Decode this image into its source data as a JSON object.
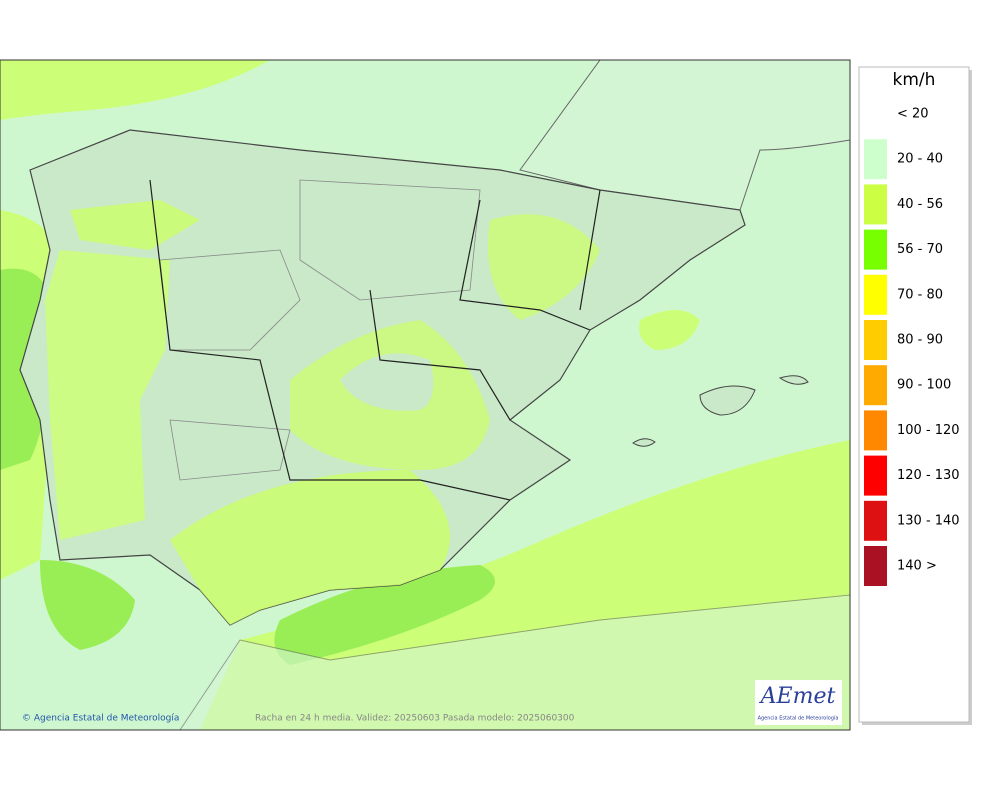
{
  "legend": {
    "unit": "km/h",
    "items": [
      {
        "label": "< 20"
      },
      {
        "label": "20 - 40",
        "color": "#ccffcc"
      },
      {
        "label": "40 - 56",
        "color": "#ccff44"
      },
      {
        "label": "56 - 70",
        "color": "#77ff00"
      },
      {
        "label": "70 - 80",
        "color": "#ffff00"
      },
      {
        "label": "80 - 90",
        "color": "#ffcc00"
      },
      {
        "label": "90 - 100",
        "color": "#ffaa00"
      },
      {
        "label": "100 - 120",
        "color": "#ff8800"
      },
      {
        "label": "120 - 130",
        "color": "#ff0000"
      },
      {
        "label": "130 - 140",
        "color": "#dd1111"
      },
      {
        "label": "140 >",
        "color": "#aa1122"
      }
    ]
  },
  "footer": {
    "credit": "© Agencia Estatal de Meteorología",
    "caption": "Racha en 24 h media. Validez: 20250603 Pasada modelo: 2025060300"
  },
  "logo": {
    "name": "AEmet",
    "subtitle": "Agencia Estatal de Meteorología"
  }
}
